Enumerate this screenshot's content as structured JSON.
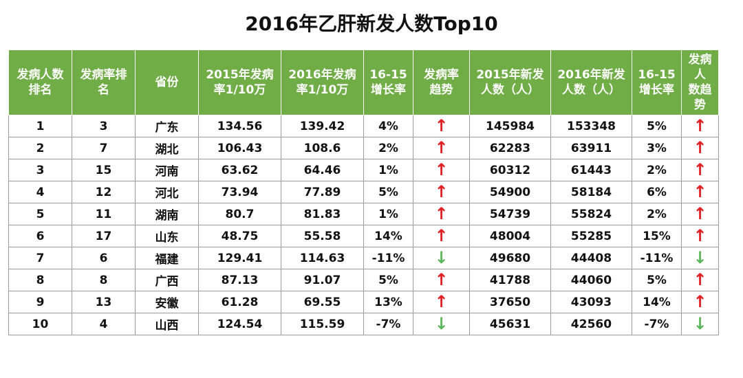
{
  "title": "2016年乙肝新发人数Top10",
  "colors": {
    "header_bg": "#70ad47",
    "up_arrow": "#e02020",
    "down_arrow": "#5cb85c"
  },
  "chart_data": {
    "type": "table",
    "title": "2016年乙肝新发人数Top10",
    "columns": [
      "发病人数\n排名",
      "发病率排\n名",
      "省份",
      "2015年发病\n率1/10万",
      "2016年发病\n率1/10万",
      "16-15\n增长率",
      "发病率\n趋势",
      "2015年新发\n人数（人）",
      "2016年新发\n人数（人）",
      "16-15\n增长率",
      "发病人\n数趋势"
    ],
    "rows": [
      [
        "1",
        "3",
        "广东",
        "134.56",
        "139.42",
        "4%",
        "↑",
        "145984",
        "153348",
        "5%",
        "↑"
      ],
      [
        "2",
        "7",
        "湖北",
        "106.43",
        "108.6",
        "2%",
        "↑",
        "62283",
        "63911",
        "3%",
        "↑"
      ],
      [
        "3",
        "15",
        "河南",
        "63.62",
        "64.46",
        "1%",
        "↑",
        "60312",
        "61443",
        "2%",
        "↑"
      ],
      [
        "4",
        "12",
        "河北",
        "73.94",
        "77.89",
        "5%",
        "↑",
        "54900",
        "58184",
        "6%",
        "↑"
      ],
      [
        "5",
        "11",
        "湖南",
        "80.7",
        "81.83",
        "1%",
        "↑",
        "54739",
        "55824",
        "2%",
        "↑"
      ],
      [
        "6",
        "17",
        "山东",
        "48.75",
        "55.58",
        "14%",
        "↑",
        "48004",
        "55285",
        "15%",
        "↑"
      ],
      [
        "7",
        "6",
        "福建",
        "129.41",
        "114.63",
        "-11%",
        "↓",
        "49680",
        "44408",
        "-11%",
        "↓"
      ],
      [
        "8",
        "8",
        "广西",
        "87.13",
        "91.07",
        "5%",
        "↑",
        "41788",
        "44060",
        "5%",
        "↑"
      ],
      [
        "9",
        "13",
        "安徽",
        "61.28",
        "69.55",
        "13%",
        "↑",
        "37650",
        "43093",
        "14%",
        "↑"
      ],
      [
        "10",
        "4",
        "山西",
        "124.54",
        "115.59",
        "-7%",
        "↓",
        "45631",
        "42560",
        "-7%",
        "↓"
      ]
    ]
  }
}
